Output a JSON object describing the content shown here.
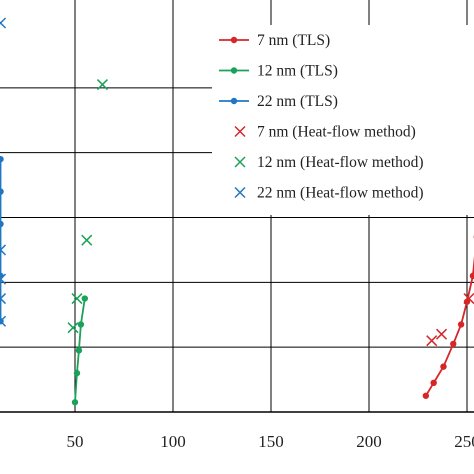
{
  "chart_data": {
    "type": "scatter",
    "title": "",
    "xlabel": "",
    "ylabel": "",
    "xlim": [
      12,
      256
    ],
    "ylim": [
      0,
      6
    ],
    "x_ticks": [
      50,
      100,
      150,
      200,
      250
    ],
    "x_tick_labels": [
      "50",
      "100",
      "150",
      "200",
      "250"
    ],
    "grid": true,
    "legend": "top-right",
    "series": [
      {
        "name": "7 nm (TLS)",
        "kind": "line-marker",
        "color": "#d62728",
        "points": [
          [
            229,
            0.25
          ],
          [
            233,
            0.45
          ],
          [
            238,
            0.7
          ],
          [
            243,
            1.05
          ],
          [
            247,
            1.35
          ],
          [
            250,
            1.7
          ],
          [
            253,
            2.1
          ],
          [
            255,
            2.7
          ]
        ]
      },
      {
        "name": "12 nm (TLS)",
        "kind": "line-marker",
        "color": "#1aa25a",
        "points": [
          [
            50,
            0.15
          ],
          [
            51,
            0.6
          ],
          [
            52,
            0.95
          ],
          [
            53,
            1.35
          ],
          [
            55,
            1.75
          ]
        ]
      },
      {
        "name": "22 nm (TLS)",
        "kind": "line-marker",
        "color": "#1f77c4",
        "points": [
          [
            12,
            1.4
          ],
          [
            12,
            2.1
          ],
          [
            12,
            2.9
          ],
          [
            12,
            3.4
          ],
          [
            12,
            3.9
          ]
        ]
      },
      {
        "name": "7 nm (Heat-flow method)",
        "kind": "cross",
        "color": "#d62728",
        "points": [
          [
            232,
            1.1
          ],
          [
            237,
            1.2
          ],
          [
            251,
            1.75
          ]
        ]
      },
      {
        "name": "12 nm (Heat-flow method)",
        "kind": "cross",
        "color": "#1aa25a",
        "points": [
          [
            49,
            1.3
          ],
          [
            51,
            1.75
          ],
          [
            56,
            2.65
          ],
          [
            64,
            5.05
          ]
        ]
      },
      {
        "name": "22 nm (Heat-flow method)",
        "kind": "cross",
        "color": "#1f77c4",
        "points": [
          [
            12,
            1.4
          ],
          [
            12,
            1.75
          ],
          [
            12,
            2.05
          ],
          [
            12,
            2.5
          ],
          [
            12,
            6.0
          ]
        ]
      }
    ]
  }
}
